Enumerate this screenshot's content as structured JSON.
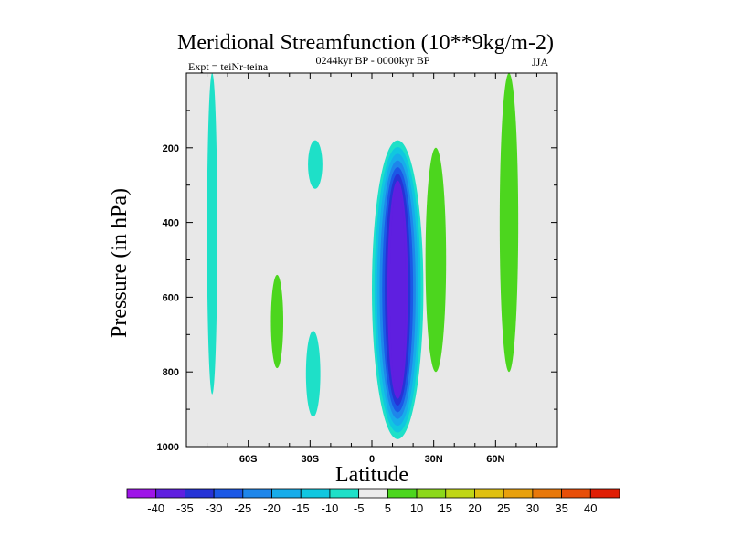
{
  "chart_data": {
    "type": "heatmap",
    "title": "Meridional Streamfunction (10**9kg/m-2)",
    "subtitle_left": "Expt = teiNr-teina",
    "subtitle_center": "0244kyr BP - 0000kyr BP",
    "subtitle_right": "JJA",
    "xlabel": "Latitude",
    "ylabel": "Pressure (in hPa)",
    "xlim": [
      -90,
      90
    ],
    "ylim": [
      1000,
      0
    ],
    "xticks": [
      {
        "value": -60,
        "label": "60S"
      },
      {
        "value": -30,
        "label": "30S"
      },
      {
        "value": 0,
        "label": "0"
      },
      {
        "value": 30,
        "label": "30N"
      },
      {
        "value": 60,
        "label": "60N"
      }
    ],
    "yticks": [
      {
        "value": 200,
        "label": "200"
      },
      {
        "value": 400,
        "label": "400"
      },
      {
        "value": 600,
        "label": "600"
      },
      {
        "value": 800,
        "label": "800"
      },
      {
        "value": 1000,
        "label": "1000"
      }
    ],
    "background_color": "#e8e8e8",
    "colorbar": {
      "labels": [
        "-40",
        "-35",
        "-30",
        "-25",
        "-20",
        "-15",
        "-10",
        "-5",
        "5",
        "10",
        "15",
        "20",
        "25",
        "30",
        "35",
        "40"
      ],
      "colors": [
        "#9e15e8",
        "#5f1fe0",
        "#2633d6",
        "#1b58e6",
        "#1e86ea",
        "#17acea",
        "#10c7e0",
        "#1ee0c8",
        "#ececec",
        "#4cd61e",
        "#8cd81a",
        "#c0d616",
        "#e0c010",
        "#e8a00c",
        "#e8780a",
        "#e84e08",
        "#e01e04"
      ]
    },
    "features": [
      {
        "name": "neg-band-80s",
        "value": -7,
        "lat_range": [
          -80,
          -75
        ],
        "pressure_range": [
          0,
          860
        ]
      },
      {
        "name": "pos-blob-45s",
        "value": 7,
        "lat_range": [
          -49,
          -43
        ],
        "pressure_range": [
          540,
          790
        ]
      },
      {
        "name": "neg-blob-27s",
        "value": -7,
        "lat_range": [
          -31,
          -24
        ],
        "pressure_range": [
          180,
          310
        ]
      },
      {
        "name": "neg-blob-27s-lower",
        "value": -7,
        "lat_range": [
          -32,
          -25
        ],
        "pressure_range": [
          690,
          920
        ]
      },
      {
        "name": "neg-core-5n",
        "value": -40,
        "lat_range": [
          0,
          25
        ],
        "pressure_range": [
          180,
          980
        ]
      },
      {
        "name": "pos-band-30n",
        "value": 7,
        "lat_range": [
          26,
          36
        ],
        "pressure_range": [
          200,
          800
        ]
      },
      {
        "name": "pos-band-65n",
        "value": 7,
        "lat_range": [
          62,
          71
        ],
        "pressure_range": [
          0,
          800
        ]
      }
    ]
  }
}
